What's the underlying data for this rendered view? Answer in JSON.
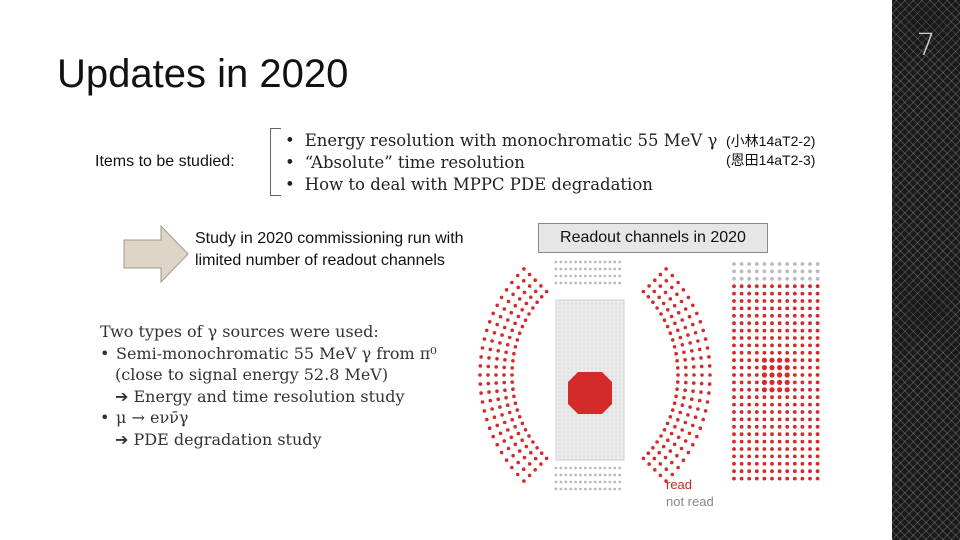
{
  "slide": {
    "title": "Updates in 2020",
    "page_number": "7",
    "items_label": "Items to be studied:",
    "items": [
      "Energy resolution with monochromatic 55 MeV γ",
      "“Absolute” time resolution",
      "How to deal with MPPC PDE degradation"
    ],
    "refs": [
      "(小林14aT2-2)",
      "(恩田14aT2-3)"
    ],
    "study_text": "Study in 2020 commissioning run with limited number of readout channels",
    "readout_title": "Readout channels in 2020",
    "sources": {
      "header": "Two types of γ sources were used:",
      "bullet1": "Semi-monochromatic 55 MeV γ from π⁰",
      "bullet1_sub": "(close to signal energy 52.8 MeV)",
      "bullet1_arrow": "➔ Energy and time resolution study",
      "bullet2": "μ → eνν̄γ",
      "bullet2_arrow": "➔ PDE degradation study"
    },
    "legend": {
      "read": "read",
      "not_read": "not read"
    },
    "colors": {
      "read": "#d42a2a",
      "not_read": "#bbbbbb",
      "side_strip": "#1a1a1a"
    }
  }
}
